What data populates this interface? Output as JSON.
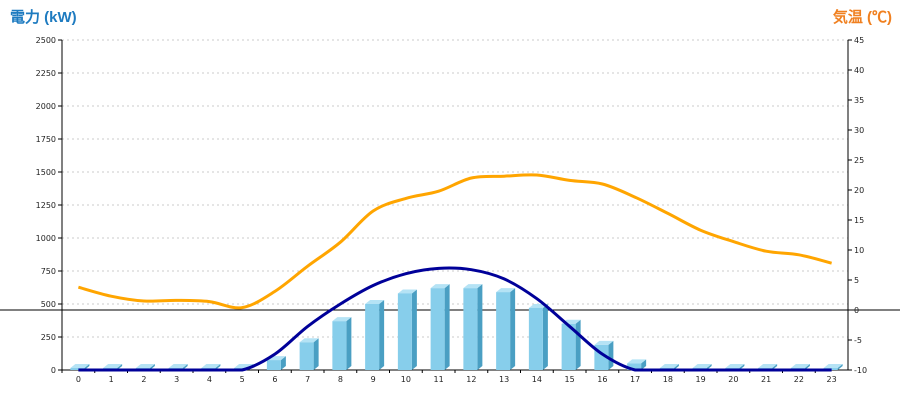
{
  "chart_data": {
    "type": "bar",
    "y_left_title": "電力 (kW)",
    "y_right_title": "気温 (℃)",
    "colors": {
      "left_title": "#1e7bc0",
      "right_title": "#f08020",
      "bar_front": "#87ceeb",
      "bar_side": "#4a9fc3",
      "bar_top": "#b5e3f5",
      "curve": "#000099",
      "temperature": "#ffa500",
      "grid": "#bbbbbb",
      "zero_line": "#000000"
    },
    "categories": [
      "0",
      "1",
      "2",
      "3",
      "4",
      "5",
      "6",
      "7",
      "8",
      "9",
      "10",
      "11",
      "12",
      "13",
      "14",
      "15",
      "16",
      "17",
      "18",
      "19",
      "20",
      "21",
      "22",
      "23"
    ],
    "y_left": {
      "min": 0,
      "max": 2500,
      "ticks": [
        0,
        250,
        500,
        750,
        1000,
        1250,
        1500,
        1750,
        2000,
        2250,
        2500
      ]
    },
    "y_right": {
      "min": -10,
      "max": 45,
      "ticks": [
        -10,
        -5,
        0,
        5,
        10,
        15,
        20,
        25,
        30,
        35,
        40,
        45
      ]
    },
    "grid": true,
    "series": [
      {
        "kind": "bar3d",
        "axis": "left",
        "values": [
          15,
          15,
          15,
          15,
          15,
          15,
          75,
          210,
          370,
          500,
          580,
          620,
          620,
          590,
          470,
          350,
          190,
          50,
          15,
          15,
          15,
          15,
          15,
          15
        ]
      },
      {
        "kind": "line",
        "axis": "left",
        "values": [
          0,
          0,
          0,
          0,
          0,
          0,
          120,
          330,
          500,
          640,
          730,
          770,
          760,
          690,
          540,
          330,
          120,
          0,
          0,
          0,
          0,
          0,
          0,
          0
        ]
      },
      {
        "kind": "line",
        "axis": "right",
        "values": [
          3.8,
          2.3,
          1.5,
          1.6,
          1.4,
          0.4,
          3.1,
          7.3,
          11.3,
          16.5,
          18.6,
          19.8,
          22.0,
          22.3,
          22.5,
          21.6,
          21.0,
          18.8,
          16.1,
          13.3,
          11.4,
          9.8,
          9.2,
          7.8
        ]
      }
    ]
  }
}
